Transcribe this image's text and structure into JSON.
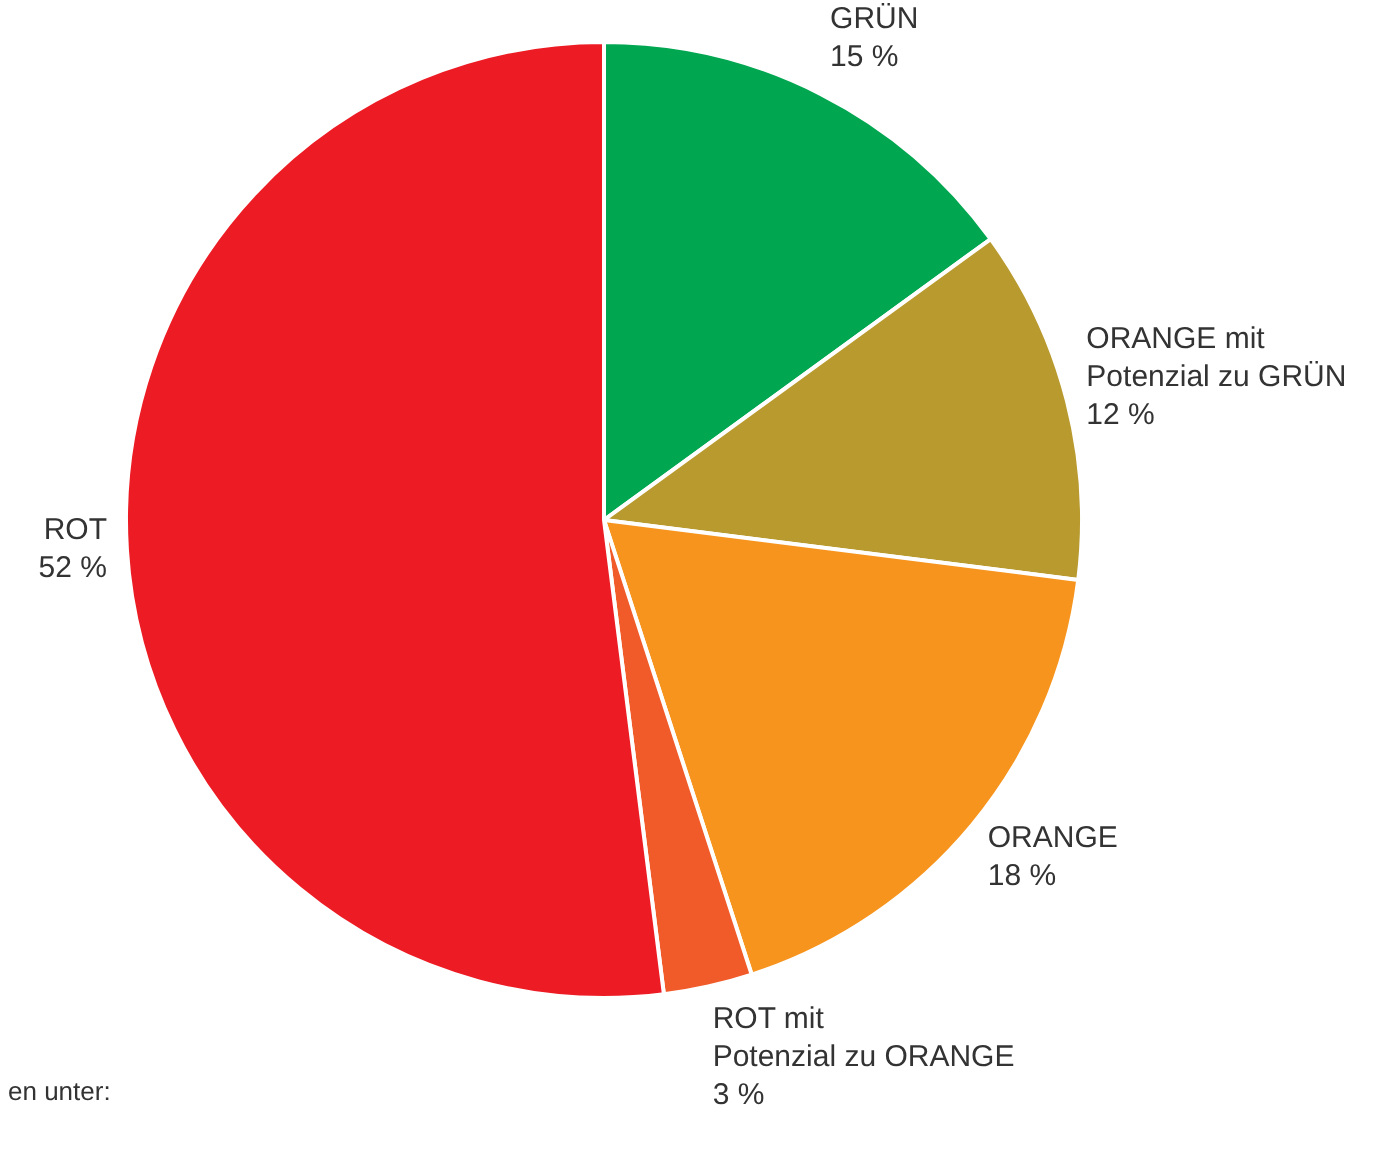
{
  "chart_data": {
    "type": "pie",
    "categories": [
      "GRÜN",
      "ORANGE mit Potenzial zu GRÜN",
      "ORANGE",
      "ROT mit Potenzial zu ORANGE",
      "ROT"
    ],
    "values": [
      15,
      12,
      18,
      3,
      52
    ],
    "value_labels": [
      "15 %",
      "12 %",
      "18 %",
      "3 %",
      "52 %"
    ],
    "colors": [
      "#00a650",
      "#b89a2e",
      "#f7941d",
      "#f15a29",
      "#ed1c24"
    ],
    "legend": false,
    "annotations": [
      "en unter:"
    ]
  }
}
